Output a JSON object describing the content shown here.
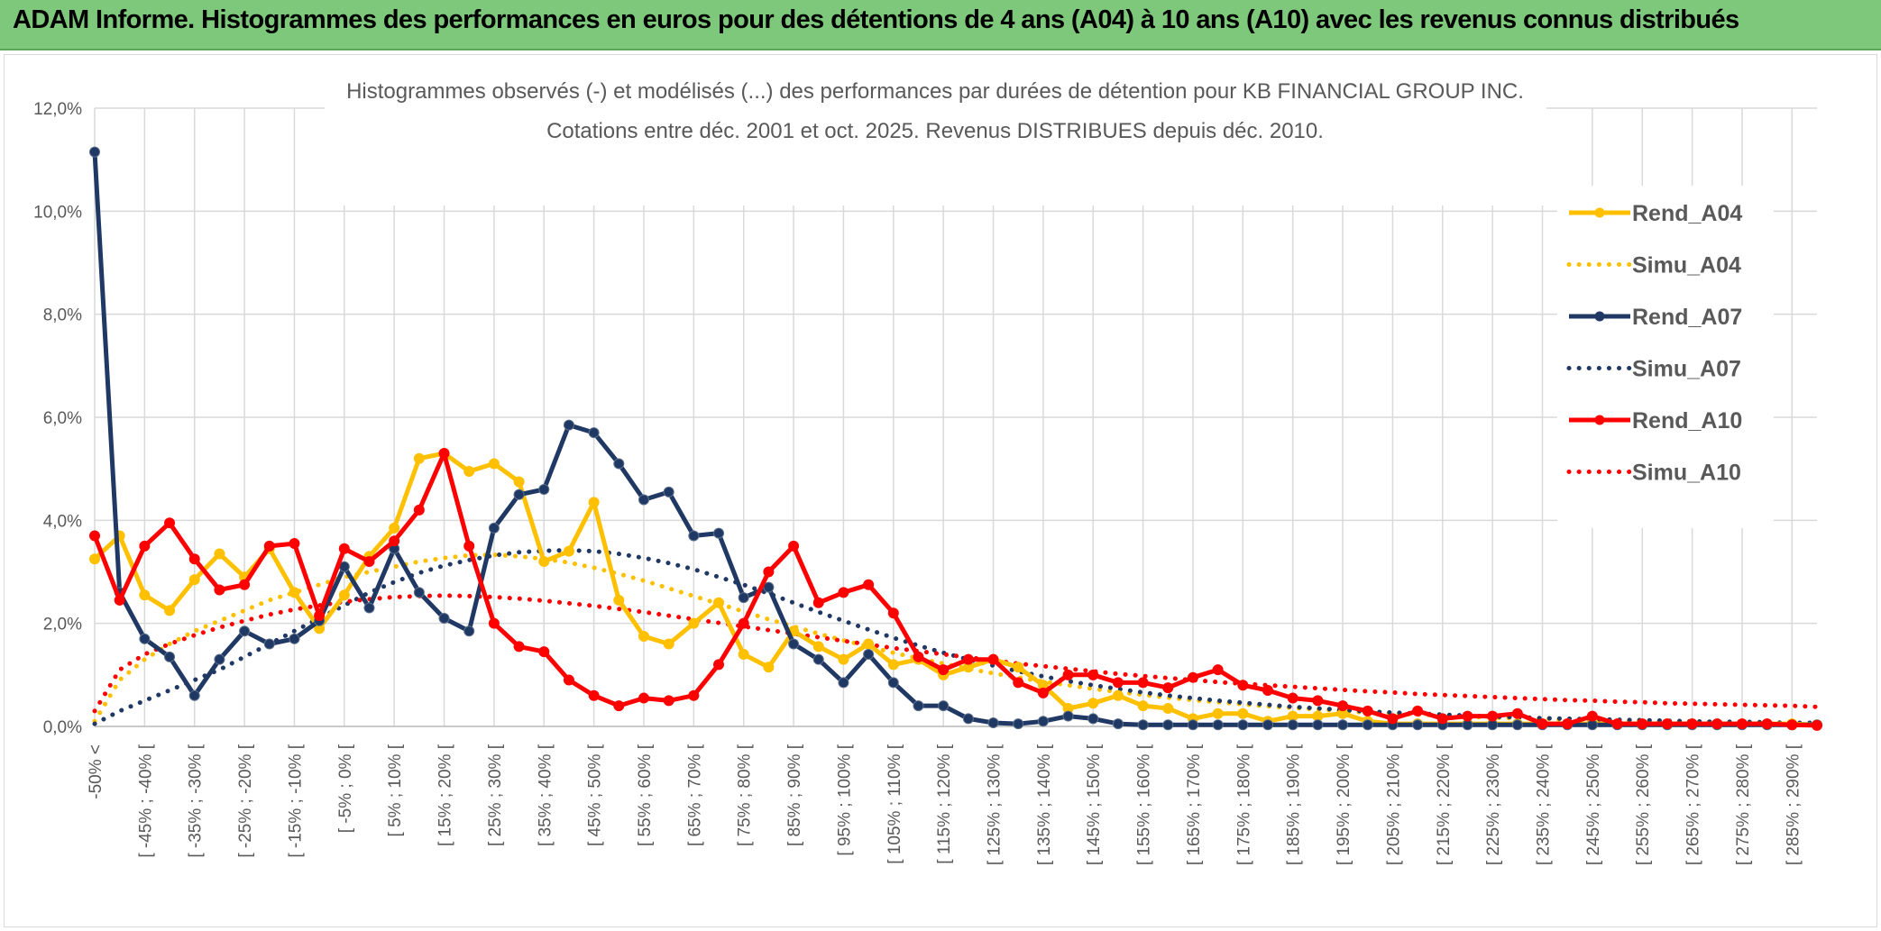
{
  "header": {
    "title": "ADAM Informe. Histogrammes des performances en euros pour des détentions de 4 ans (A04) à 10 ans (A10) avec les revenus connus distribués"
  },
  "chart_data": {
    "type": "line",
    "title_line1": "Histogrammes observés (-) et modélisés (...) des performances par durées de détention pour KB FINANCIAL GROUP INC.",
    "title_line2": "Cotations entre déc. 2001 et oct. 2025. Revenus DISTRIBUES depuis déc. 2010.",
    "ylim": [
      0,
      12
    ],
    "yticks": [
      0,
      2,
      4,
      6,
      8,
      10,
      12
    ],
    "ytick_labels": [
      "0,0%",
      "2,0%",
      "4,0%",
      "6,0%",
      "8,0%",
      "10,0%",
      "12,0%"
    ],
    "x_labels": [
      "-50% <",
      "[ -45% ; -40% [",
      "[ -35% ; -30% [",
      "[ -25% ; -20% [",
      "[ -15% ; -10% [",
      "[ -5% ; 0% [",
      "[ 5% ; 10% [",
      "[ 15% ; 20% [",
      "[ 25% ; 30% [",
      "[ 35% ; 40% [",
      "[ 45% ; 50% [",
      "[ 55% ; 60% [",
      "[ 65% ; 70% [",
      "[ 75% ; 80% [",
      "[ 85% ; 90% [",
      "[ 95% ; 100% [",
      "[ 105% ; 110% [",
      "[ 115% ; 120% [",
      "[ 125% ; 130% [",
      "[ 135% ; 140% [",
      "[ 145% ; 150% [",
      "[ 155% ; 160% [",
      "[ 165% ; 170% [",
      "[ 175% ; 180% [",
      "[ 185% ; 190% [",
      "[ 195% ; 200% [",
      "[ 205% ; 210% [",
      "[ 215% ; 220% [",
      "[ 225% ; 230% [",
      "[ 235% ; 240% [",
      "[ 245% ; 250% [",
      "[ 255% ; 260% [",
      "[ 265% ; 270% [",
      "[ 275% ; 280% [",
      "[ 285% ; 290% ["
    ],
    "n_points": 70,
    "series": [
      {
        "name": "Rend_A04",
        "color": "#ffc000",
        "style": "solid",
        "marker": true,
        "values": [
          3.25,
          3.7,
          2.55,
          2.25,
          2.85,
          3.35,
          2.9,
          3.45,
          2.6,
          1.9,
          2.55,
          3.3,
          3.85,
          5.2,
          5.3,
          4.95,
          5.1,
          4.75,
          3.2,
          3.4,
          4.35,
          2.45,
          1.75,
          1.6,
          2.0,
          2.4,
          1.4,
          1.15,
          1.85,
          1.55,
          1.3,
          1.6,
          1.2,
          1.3,
          1.0,
          1.15,
          1.3,
          1.15,
          0.8,
          0.35,
          0.45,
          0.6,
          0.4,
          0.35,
          0.15,
          0.25,
          0.25,
          0.1,
          0.2,
          0.2,
          0.25,
          0.1,
          0.05,
          0.05,
          0.05,
          0.05,
          0.05,
          0.05,
          0.05,
          0.05,
          0.05,
          0.05,
          0.05,
          0.05,
          0.05,
          0.05,
          0.05,
          0.05,
          0.05,
          0.03
        ]
      },
      {
        "name": "Simu_A04",
        "color": "#ffc000",
        "style": "dotted",
        "marker": false,
        "values": [
          0.1,
          0.9,
          1.3,
          1.6,
          1.85,
          2.05,
          2.25,
          2.45,
          2.6,
          2.75,
          2.9,
          3.0,
          3.1,
          3.2,
          3.27,
          3.32,
          3.33,
          3.3,
          3.25,
          3.18,
          3.08,
          2.96,
          2.83,
          2.68,
          2.53,
          2.38,
          2.23,
          2.08,
          1.94,
          1.8,
          1.67,
          1.55,
          1.43,
          1.32,
          1.22,
          1.12,
          1.03,
          0.95,
          0.87,
          0.8,
          0.73,
          0.67,
          0.61,
          0.56,
          0.51,
          0.47,
          0.43,
          0.39,
          0.36,
          0.33,
          0.3,
          0.27,
          0.25,
          0.23,
          0.21,
          0.19,
          0.17,
          0.16,
          0.15,
          0.13,
          0.12,
          0.11,
          0.1,
          0.09,
          0.09,
          0.08,
          0.07,
          0.07,
          0.06,
          0.05
        ]
      },
      {
        "name": "Rend_A07",
        "color": "#203864",
        "style": "solid",
        "marker": true,
        "values": [
          11.15,
          2.6,
          1.7,
          1.35,
          0.6,
          1.3,
          1.85,
          1.6,
          1.7,
          2.05,
          3.1,
          2.3,
          3.45,
          2.6,
          2.1,
          1.85,
          3.85,
          4.5,
          4.6,
          5.85,
          5.7,
          5.1,
          4.4,
          4.55,
          3.7,
          3.75,
          2.5,
          2.7,
          1.6,
          1.3,
          0.85,
          1.4,
          0.85,
          0.4,
          0.4,
          0.15,
          0.07,
          0.05,
          0.1,
          0.2,
          0.15,
          0.05,
          0.03,
          0.03,
          0.03,
          0.03,
          0.03,
          0.03,
          0.03,
          0.03,
          0.03,
          0.03,
          0.03,
          0.03,
          0.03,
          0.03,
          0.03,
          0.03,
          0.03,
          0.03,
          0.03,
          0.03,
          0.03,
          0.03,
          0.03,
          0.03,
          0.03,
          0.03,
          0.03,
          0.03
        ]
      },
      {
        "name": "Simu_A07",
        "color": "#203864",
        "style": "dotted",
        "marker": false,
        "values": [
          0.05,
          0.3,
          0.5,
          0.7,
          0.9,
          1.1,
          1.35,
          1.6,
          1.85,
          2.1,
          2.35,
          2.6,
          2.8,
          2.98,
          3.12,
          3.23,
          3.32,
          3.38,
          3.41,
          3.42,
          3.4,
          3.35,
          3.27,
          3.17,
          3.05,
          2.9,
          2.75,
          2.58,
          2.4,
          2.22,
          2.05,
          1.88,
          1.72,
          1.57,
          1.43,
          1.3,
          1.18,
          1.07,
          0.97,
          0.88,
          0.8,
          0.73,
          0.66,
          0.6,
          0.55,
          0.5,
          0.46,
          0.42,
          0.38,
          0.35,
          0.32,
          0.29,
          0.27,
          0.25,
          0.23,
          0.21,
          0.19,
          0.18,
          0.16,
          0.15,
          0.14,
          0.13,
          0.12,
          0.11,
          0.1,
          0.09,
          0.09,
          0.08,
          0.07,
          0.07
        ]
      },
      {
        "name": "Rend_A10",
        "color": "#ff0000",
        "style": "solid",
        "marker": true,
        "values": [
          3.7,
          2.45,
          3.5,
          3.95,
          3.25,
          2.65,
          2.75,
          3.5,
          3.55,
          2.15,
          3.45,
          3.2,
          3.6,
          4.2,
          5.3,
          3.5,
          2.0,
          1.55,
          1.45,
          0.9,
          0.6,
          0.4,
          0.55,
          0.5,
          0.6,
          1.2,
          2.0,
          3.0,
          3.5,
          2.4,
          2.6,
          2.75,
          2.2,
          1.35,
          1.1,
          1.3,
          1.3,
          0.85,
          0.65,
          1.0,
          1.0,
          0.85,
          0.85,
          0.75,
          0.95,
          1.1,
          0.8,
          0.7,
          0.55,
          0.5,
          0.4,
          0.3,
          0.15,
          0.3,
          0.15,
          0.2,
          0.2,
          0.25,
          0.05,
          0.05,
          0.2,
          0.05,
          0.05,
          0.05,
          0.05,
          0.05,
          0.05,
          0.05,
          0.03,
          0.02
        ]
      },
      {
        "name": "Simu_A10",
        "color": "#ff0000",
        "style": "dotted",
        "marker": false,
        "values": [
          0.3,
          1.1,
          1.4,
          1.6,
          1.77,
          1.92,
          2.05,
          2.17,
          2.27,
          2.35,
          2.42,
          2.47,
          2.51,
          2.53,
          2.54,
          2.53,
          2.51,
          2.48,
          2.44,
          2.39,
          2.34,
          2.28,
          2.22,
          2.15,
          2.08,
          2.01,
          1.94,
          1.87,
          1.8,
          1.73,
          1.66,
          1.59,
          1.52,
          1.46,
          1.4,
          1.34,
          1.28,
          1.22,
          1.17,
          1.12,
          1.07,
          1.02,
          0.98,
          0.94,
          0.9,
          0.86,
          0.83,
          0.8,
          0.77,
          0.74,
          0.71,
          0.68,
          0.66,
          0.63,
          0.61,
          0.59,
          0.57,
          0.55,
          0.53,
          0.51,
          0.5,
          0.48,
          0.47,
          0.45,
          0.44,
          0.43,
          0.42,
          0.41,
          0.4,
          0.38
        ]
      }
    ],
    "legend_position": "right"
  }
}
